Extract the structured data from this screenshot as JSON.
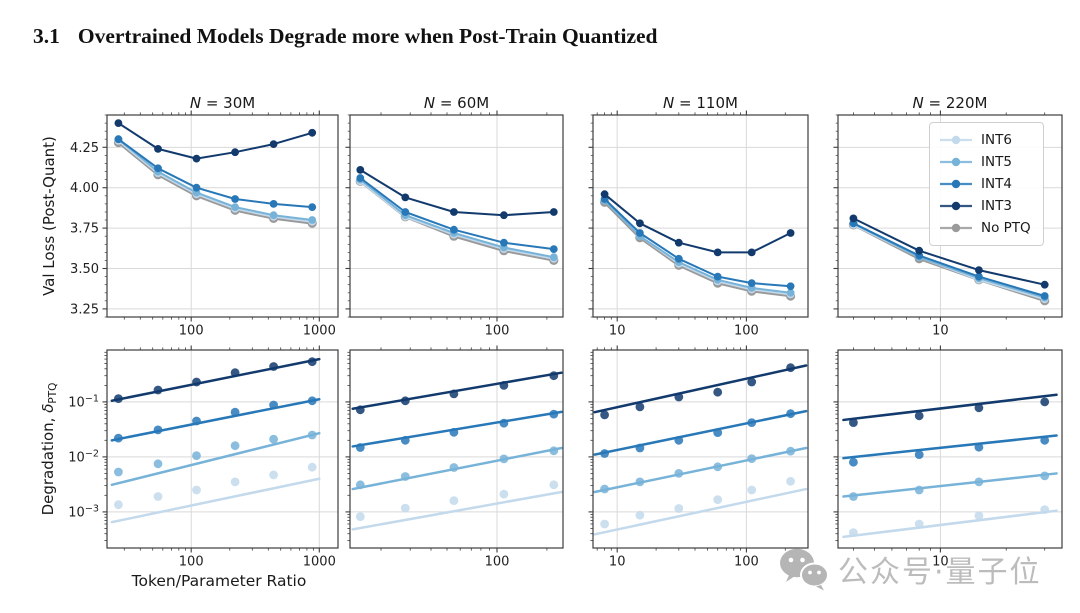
{
  "page": {
    "section_number": "3.1",
    "section_title": "Overtrained Models Degrade more when Post-Train Quantized"
  },
  "axes": {
    "ylabel_top": "Val Loss (Post-Quant)",
    "ylabel_bottom_main": "Degradation, ",
    "ylabel_bottom_delta": "δ",
    "ylabel_bottom_sub": "PTQ",
    "xlabel": "Token/Parameter Ratio"
  },
  "colors": {
    "INT6": "#c3d9ec",
    "INT5": "#77b3d8",
    "INT4": "#2878b8",
    "INT3": "#123a6d",
    "No PTQ": "#9a9a9a",
    "grid": "#d9d9d9",
    "spine": "#3d3d3d",
    "tick_label": "#1f1f1f"
  },
  "legend": {
    "items": [
      {
        "label": "INT6"
      },
      {
        "label": "INT5"
      },
      {
        "label": "INT4"
      },
      {
        "label": "INT3"
      },
      {
        "label": "No PTQ"
      }
    ]
  },
  "watermark": {
    "icon": "wechat-icon",
    "text": "公众号·量子位"
  },
  "chart_data": [
    {
      "id": "loss-30M",
      "type": "line",
      "row": 0,
      "col": 0,
      "title": "N = 30M",
      "xscale": "log",
      "yscale": "linear",
      "xlim": [
        22,
        1400
      ],
      "ylim": [
        3.2,
        4.45
      ],
      "xticks": [
        {
          "v": 100,
          "label": "100"
        },
        {
          "v": 1000,
          "label": "1000"
        }
      ],
      "yticks": [
        {
          "v": 3.25,
          "label": "3.25"
        },
        {
          "v": 3.5,
          "label": "3.50"
        },
        {
          "v": 3.75,
          "label": "3.75"
        },
        {
          "v": 4.0,
          "label": "4.00"
        },
        {
          "v": 4.25,
          "label": "4.25"
        }
      ],
      "x": [
        27,
        55,
        110,
        220,
        440,
        880
      ],
      "series": [
        {
          "name": "No PTQ",
          "values": [
            4.28,
            4.08,
            3.95,
            3.86,
            3.81,
            3.78
          ]
        },
        {
          "name": "INT6",
          "values": [
            4.29,
            4.09,
            3.96,
            3.87,
            3.82,
            3.79
          ]
        },
        {
          "name": "INT5",
          "values": [
            4.3,
            4.1,
            3.97,
            3.88,
            3.83,
            3.8
          ]
        },
        {
          "name": "INT4",
          "values": [
            4.3,
            4.12,
            4.0,
            3.93,
            3.9,
            3.88
          ]
        },
        {
          "name": "INT3",
          "values": [
            4.4,
            4.24,
            4.18,
            4.22,
            4.27,
            4.34
          ]
        }
      ]
    },
    {
      "id": "loss-60M",
      "type": "line",
      "row": 0,
      "col": 1,
      "title": "N = 60M",
      "xscale": "log",
      "yscale": "linear",
      "xlim": [
        13,
        250
      ],
      "ylim": [
        3.2,
        4.45
      ],
      "xticks": [
        {
          "v": 100,
          "label": "100"
        }
      ],
      "yticks": [
        {
          "v": 3.25
        },
        {
          "v": 3.5
        },
        {
          "v": 3.75
        },
        {
          "v": 4.0
        },
        {
          "v": 4.25
        }
      ],
      "x": [
        15,
        28,
        55,
        110,
        220
      ],
      "series": [
        {
          "name": "No PTQ",
          "values": [
            4.04,
            3.82,
            3.7,
            3.61,
            3.55
          ]
        },
        {
          "name": "INT6",
          "values": [
            4.04,
            3.82,
            3.71,
            3.62,
            3.56
          ]
        },
        {
          "name": "INT5",
          "values": [
            4.05,
            3.83,
            3.72,
            3.63,
            3.57
          ]
        },
        {
          "name": "INT4",
          "values": [
            4.06,
            3.85,
            3.74,
            3.66,
            3.62
          ]
        },
        {
          "name": "INT3",
          "values": [
            4.11,
            3.94,
            3.85,
            3.83,
            3.85
          ]
        }
      ]
    },
    {
      "id": "loss-110M",
      "type": "line",
      "row": 0,
      "col": 2,
      "title": "N = 110M",
      "xscale": "log",
      "yscale": "linear",
      "xlim": [
        6.5,
        300
      ],
      "ylim": [
        3.2,
        4.45
      ],
      "xticks": [
        {
          "v": 10,
          "label": "10"
        },
        {
          "v": 100,
          "label": "100"
        }
      ],
      "yticks": [
        {
          "v": 3.25
        },
        {
          "v": 3.5
        },
        {
          "v": 3.75
        },
        {
          "v": 4.0
        },
        {
          "v": 4.25
        }
      ],
      "x": [
        8,
        15,
        30,
        60,
        110,
        220
      ],
      "series": [
        {
          "name": "No PTQ",
          "values": [
            3.91,
            3.69,
            3.52,
            3.41,
            3.36,
            3.33
          ]
        },
        {
          "name": "INT6",
          "values": [
            3.92,
            3.7,
            3.53,
            3.42,
            3.37,
            3.34
          ]
        },
        {
          "name": "INT5",
          "values": [
            3.92,
            3.7,
            3.54,
            3.43,
            3.38,
            3.35
          ]
        },
        {
          "name": "INT4",
          "values": [
            3.93,
            3.72,
            3.56,
            3.45,
            3.41,
            3.39
          ]
        },
        {
          "name": "INT3",
          "values": [
            3.96,
            3.78,
            3.66,
            3.6,
            3.6,
            3.72
          ]
        }
      ]
    },
    {
      "id": "loss-220M",
      "type": "line",
      "row": 0,
      "col": 3,
      "title": "N = 220M",
      "xscale": "log",
      "yscale": "linear",
      "xlim": [
        3.4,
        36
      ],
      "ylim": [
        3.2,
        4.45
      ],
      "xticks": [
        {
          "v": 10,
          "label": "10"
        }
      ],
      "yticks": [
        {
          "v": 3.25
        },
        {
          "v": 3.5
        },
        {
          "v": 3.75
        },
        {
          "v": 4.0
        },
        {
          "v": 4.25
        }
      ],
      "x": [
        4,
        8,
        15,
        30
      ],
      "series": [
        {
          "name": "No PTQ",
          "values": [
            3.77,
            3.56,
            3.43,
            3.3
          ]
        },
        {
          "name": "INT6",
          "values": [
            3.77,
            3.57,
            3.43,
            3.31
          ]
        },
        {
          "name": "INT5",
          "values": [
            3.78,
            3.57,
            3.44,
            3.32
          ]
        },
        {
          "name": "INT4",
          "values": [
            3.78,
            3.58,
            3.45,
            3.33
          ]
        },
        {
          "name": "INT3",
          "values": [
            3.81,
            3.61,
            3.49,
            3.4
          ]
        }
      ]
    },
    {
      "id": "deg-30M",
      "type": "scatter_fit",
      "row": 1,
      "col": 0,
      "xscale": "log",
      "yscale": "log",
      "xlim": [
        22,
        1400
      ],
      "ylim": [
        0.00022,
        0.88
      ],
      "xticks": [
        {
          "v": 100,
          "label": "100"
        },
        {
          "v": 1000,
          "label": "1000"
        }
      ],
      "yticks": [
        {
          "v": 0.1,
          "label": "10^−1"
        },
        {
          "v": 0.01,
          "label": "10^−2"
        },
        {
          "v": 0.001,
          "label": "10^−3"
        }
      ],
      "x": [
        27,
        55,
        110,
        220,
        440,
        880
      ],
      "series": [
        {
          "name": "INT6",
          "values": [
            0.00135,
            0.0019,
            0.0025,
            0.0035,
            0.0047,
            0.0065
          ],
          "fit": {
            "x": [
              24,
              1000
            ],
            "y": [
              0.00065,
              0.004
            ]
          }
        },
        {
          "name": "INT5",
          "values": [
            0.0053,
            0.0075,
            0.0105,
            0.016,
            0.021,
            0.025
          ],
          "fit": {
            "x": [
              24,
              1000
            ],
            "y": [
              0.0031,
              0.027
            ]
          }
        },
        {
          "name": "INT4",
          "values": [
            0.022,
            0.031,
            0.045,
            0.065,
            0.088,
            0.105
          ],
          "fit": {
            "x": [
              24,
              1000
            ],
            "y": [
              0.02,
              0.112
            ]
          }
        },
        {
          "name": "INT3",
          "values": [
            0.115,
            0.165,
            0.23,
            0.34,
            0.44,
            0.54
          ],
          "fit": {
            "x": [
              24,
              1000
            ],
            "y": [
              0.105,
              0.6
            ]
          }
        }
      ]
    },
    {
      "id": "deg-60M",
      "type": "scatter_fit",
      "row": 1,
      "col": 1,
      "xscale": "log",
      "yscale": "log",
      "xlim": [
        13,
        250
      ],
      "ylim": [
        0.00022,
        0.88
      ],
      "xticks": [
        {
          "v": 100,
          "label": "100"
        }
      ],
      "yticks": [
        {
          "v": 0.1
        },
        {
          "v": 0.01
        },
        {
          "v": 0.001
        }
      ],
      "x": [
        15,
        28,
        55,
        110,
        220
      ],
      "series": [
        {
          "name": "INT6",
          "values": [
            0.00082,
            0.00117,
            0.0016,
            0.0021,
            0.0031
          ],
          "fit": {
            "x": [
              13.5,
              245
            ],
            "y": [
              0.00048,
              0.0023
            ]
          }
        },
        {
          "name": "INT5",
          "values": [
            0.0031,
            0.0044,
            0.0064,
            0.0092,
            0.0129
          ],
          "fit": {
            "x": [
              13.5,
              245
            ],
            "y": [
              0.0026,
              0.0145
            ]
          }
        },
        {
          "name": "INT4",
          "values": [
            0.0148,
            0.02,
            0.028,
            0.041,
            0.06
          ],
          "fit": {
            "x": [
              13.5,
              245
            ],
            "y": [
              0.0155,
              0.066
            ]
          }
        },
        {
          "name": "INT3",
          "values": [
            0.072,
            0.105,
            0.14,
            0.2,
            0.3
          ],
          "fit": {
            "x": [
              13.5,
              245
            ],
            "y": [
              0.075,
              0.34
            ]
          }
        }
      ]
    },
    {
      "id": "deg-110M",
      "type": "scatter_fit",
      "row": 1,
      "col": 2,
      "xscale": "log",
      "yscale": "log",
      "xlim": [
        6.5,
        300
      ],
      "ylim": [
        0.00022,
        0.88
      ],
      "xticks": [
        {
          "v": 10,
          "label": "10"
        },
        {
          "v": 100,
          "label": "100"
        }
      ],
      "yticks": [
        {
          "v": 0.1
        },
        {
          "v": 0.01
        },
        {
          "v": 0.001
        }
      ],
      "x": [
        8,
        15,
        30,
        60,
        110,
        220
      ],
      "series": [
        {
          "name": "INT6",
          "values": [
            0.0006,
            0.00087,
            0.00115,
            0.00167,
            0.0025,
            0.0036
          ],
          "fit": {
            "x": [
              6.7,
              290
            ],
            "y": [
              0.00039,
              0.0026
            ]
          }
        },
        {
          "name": "INT5",
          "values": [
            0.0026,
            0.0035,
            0.005,
            0.0066,
            0.0093,
            0.0127
          ],
          "fit": {
            "x": [
              6.7,
              290
            ],
            "y": [
              0.0023,
              0.0145
            ]
          }
        },
        {
          "name": "INT4",
          "values": [
            0.0115,
            0.0145,
            0.02,
            0.0277,
            0.042,
            0.061
          ],
          "fit": {
            "x": [
              6.7,
              290
            ],
            "y": [
              0.011,
              0.068
            ]
          }
        },
        {
          "name": "INT3",
          "values": [
            0.058,
            0.081,
            0.123,
            0.15,
            0.23,
            0.42
          ],
          "fit": {
            "x": [
              6.7,
              290
            ],
            "y": [
              0.065,
              0.46
            ]
          }
        }
      ]
    },
    {
      "id": "deg-220M",
      "type": "scatter_fit",
      "row": 1,
      "col": 3,
      "xscale": "log",
      "yscale": "log",
      "xlim": [
        3.4,
        36
      ],
      "ylim": [
        0.00022,
        0.88
      ],
      "xticks": [
        {
          "v": 10,
          "label": "10"
        }
      ],
      "yticks": [
        {
          "v": 0.1
        },
        {
          "v": 0.01
        },
        {
          "v": 0.001
        }
      ],
      "x": [
        4,
        8,
        15,
        30
      ],
      "series": [
        {
          "name": "INT6",
          "values": [
            0.00042,
            0.0006,
            0.00085,
            0.0011
          ],
          "fit": {
            "x": [
              3.6,
              34
            ],
            "y": [
              0.00035,
              0.00105
            ]
          }
        },
        {
          "name": "INT5",
          "values": [
            0.0019,
            0.0025,
            0.0035,
            0.0045
          ],
          "fit": {
            "x": [
              3.6,
              34
            ],
            "y": [
              0.0019,
              0.005
            ]
          }
        },
        {
          "name": "INT4",
          "values": [
            0.008,
            0.011,
            0.015,
            0.02
          ],
          "fit": {
            "x": [
              3.6,
              34
            ],
            "y": [
              0.0095,
              0.0245
            ]
          }
        },
        {
          "name": "INT3",
          "values": [
            0.042,
            0.056,
            0.078,
            0.1
          ],
          "fit": {
            "x": [
              3.6,
              34
            ],
            "y": [
              0.047,
              0.135
            ]
          }
        }
      ]
    }
  ]
}
